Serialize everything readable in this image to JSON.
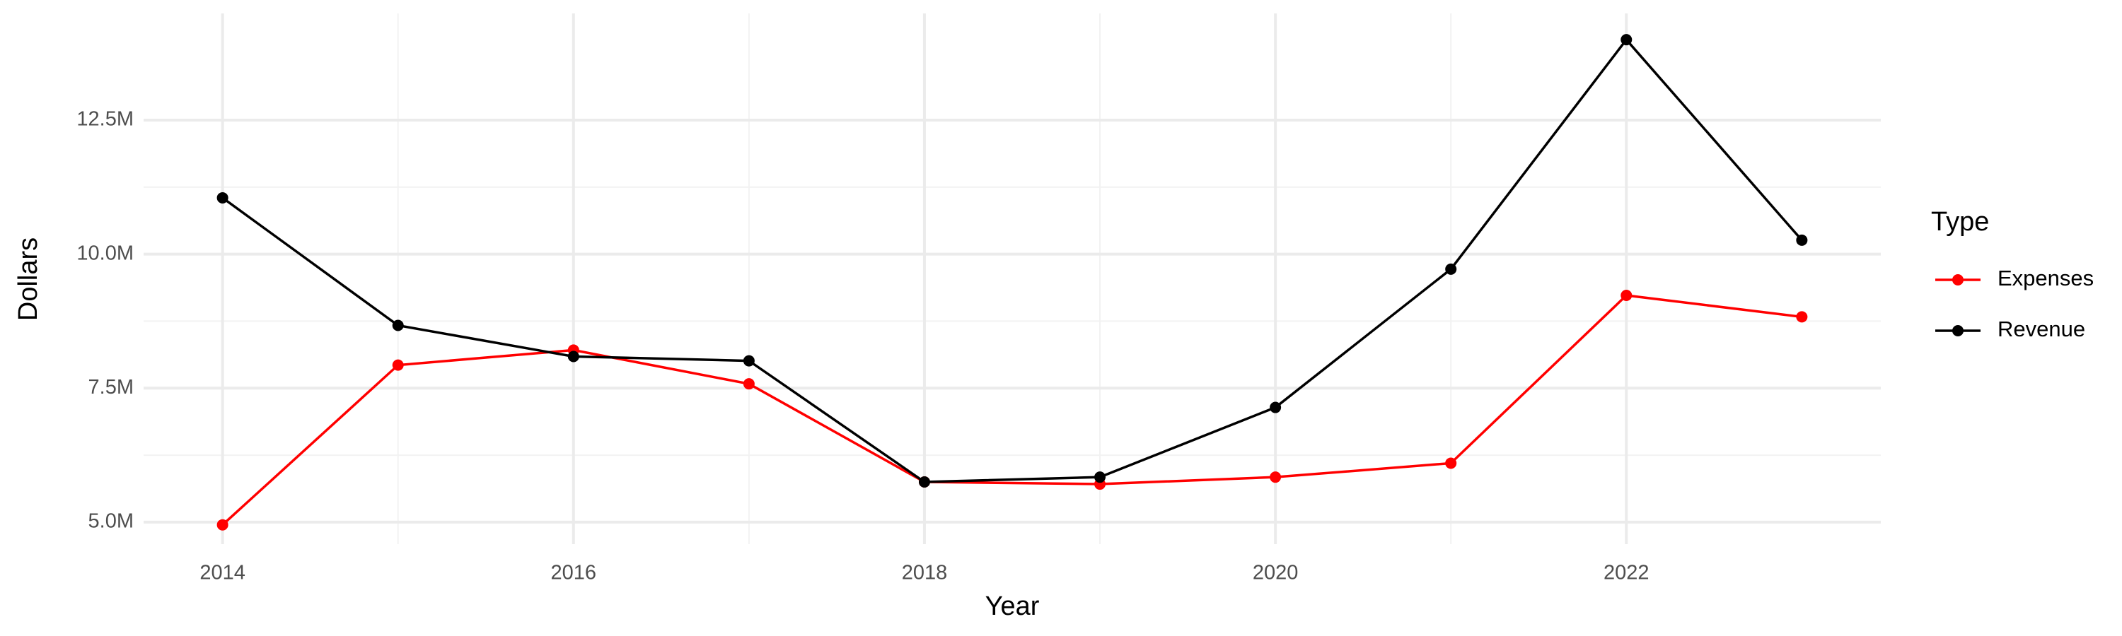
{
  "chart_data": {
    "type": "line",
    "x_label": "Year",
    "y_label": "Dollars",
    "legend_title": "Type",
    "legend_position": "right",
    "grid": true,
    "x": [
      2014,
      2015,
      2016,
      2017,
      2018,
      2019,
      2020,
      2021,
      2022,
      2023
    ],
    "series": [
      {
        "name": "Expenses",
        "color": "#ff0000",
        "values": [
          4950000,
          7930000,
          8210000,
          7580000,
          5750000,
          5710000,
          5840000,
          6100000,
          9230000,
          8830000
        ]
      },
      {
        "name": "Revenue",
        "color": "#000000",
        "values": [
          11050000,
          8670000,
          8090000,
          8010000,
          5750000,
          5840000,
          7140000,
          9720000,
          14000000,
          10260000
        ]
      }
    ],
    "xlim": [
      2013.55,
      2023.45
    ],
    "xticks": [
      2014,
      2016,
      2018,
      2020,
      2022
    ],
    "ylim": [
      4590000,
      14490000
    ],
    "yticks": [
      {
        "value": 5000000,
        "label": "5.0M"
      },
      {
        "value": 7500000,
        "label": "7.5M"
      },
      {
        "value": 10000000,
        "label": "10.0M"
      },
      {
        "value": 12500000,
        "label": "12.5M"
      }
    ]
  }
}
